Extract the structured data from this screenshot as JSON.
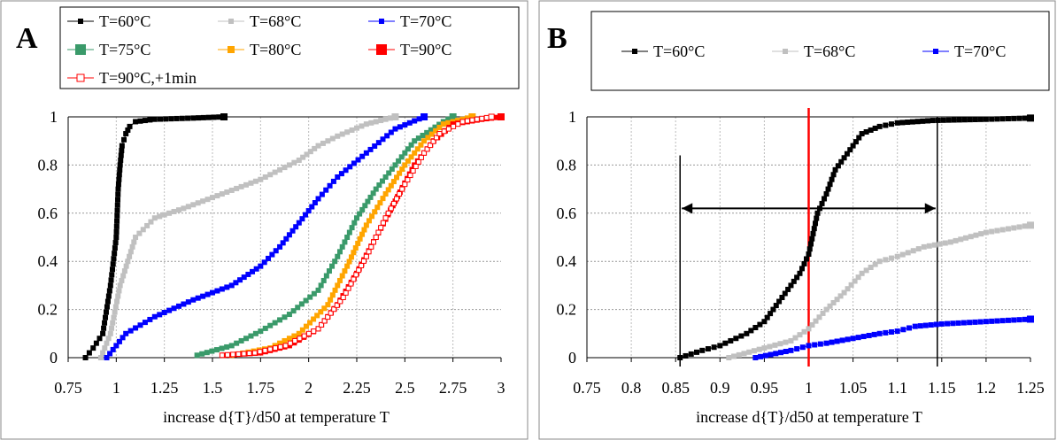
{
  "chart_data": [
    {
      "panel_label": "A",
      "type": "line",
      "xlabel": "increase d{T}/d50 at temperature T",
      "ylabel": "",
      "xlim": [
        0.75,
        3
      ],
      "ylim": [
        0,
        1
      ],
      "x_ticks": [
        "0.75",
        "1",
        "1.25",
        "1.5",
        "1.75",
        "2",
        "2.25",
        "2.5",
        "2.75",
        "3"
      ],
      "y_ticks": [
        "0",
        "0.2",
        "0.4",
        "0.6",
        "0.8",
        "1"
      ],
      "grid": true,
      "legend_position": "top",
      "series": [
        {
          "name": "T=60°C",
          "color": "#000000",
          "marker": "filled-square",
          "x": [
            0.84,
            0.88,
            0.93,
            0.97,
            1.0,
            1.01,
            1.02,
            1.03,
            1.05,
            1.07,
            1.1,
            1.2,
            1.4,
            1.56
          ],
          "y": [
            0.0,
            0.04,
            0.1,
            0.3,
            0.5,
            0.7,
            0.8,
            0.88,
            0.93,
            0.96,
            0.98,
            0.99,
            0.995,
            1.0
          ]
        },
        {
          "name": "T=68°C",
          "color": "#c0c0c0",
          "marker": "filled-square",
          "x": [
            0.92,
            0.97,
            1.02,
            1.1,
            1.2,
            1.35,
            1.55,
            1.75,
            1.95,
            2.05,
            2.15,
            2.3,
            2.45
          ],
          "y": [
            0.0,
            0.1,
            0.3,
            0.5,
            0.58,
            0.62,
            0.68,
            0.74,
            0.82,
            0.88,
            0.92,
            0.97,
            1.0
          ]
        },
        {
          "name": "T=70°C",
          "color": "#0000ff",
          "marker": "filled-square",
          "x": [
            0.95,
            1.05,
            1.2,
            1.4,
            1.6,
            1.75,
            1.85,
            1.95,
            2.05,
            2.15,
            2.3,
            2.45,
            2.6
          ],
          "y": [
            0.0,
            0.1,
            0.17,
            0.24,
            0.3,
            0.38,
            0.46,
            0.56,
            0.66,
            0.75,
            0.85,
            0.95,
            1.0
          ]
        },
        {
          "name": "T=75°C",
          "color": "#3a9a6a",
          "marker": "filled-square",
          "x": [
            1.42,
            1.6,
            1.75,
            1.9,
            2.05,
            2.15,
            2.25,
            2.35,
            2.45,
            2.55,
            2.7,
            2.75
          ],
          "y": [
            0.01,
            0.05,
            0.11,
            0.18,
            0.28,
            0.42,
            0.58,
            0.7,
            0.8,
            0.9,
            0.98,
            1.0
          ]
        },
        {
          "name": "T=80°C",
          "color": "#ffa500",
          "marker": "filled-square",
          "x": [
            1.6,
            1.8,
            1.95,
            2.1,
            2.2,
            2.3,
            2.4,
            2.5,
            2.6,
            2.7,
            2.85
          ],
          "y": [
            0.01,
            0.04,
            0.1,
            0.22,
            0.38,
            0.55,
            0.68,
            0.8,
            0.9,
            0.97,
            1.0
          ]
        },
        {
          "name": "T=90°C",
          "color": "#ff0000",
          "marker": "filled-square",
          "x": [
            1.56,
            1.75,
            1.9,
            2.05,
            2.15,
            2.25,
            2.35,
            2.45,
            2.55,
            2.65,
            2.75,
            2.9,
            3.0
          ],
          "y": [
            0.01,
            0.02,
            0.05,
            0.12,
            0.22,
            0.35,
            0.5,
            0.65,
            0.8,
            0.9,
            0.97,
            0.99,
            1.0
          ]
        },
        {
          "name": "T=90°C,+1min",
          "color": "#ff0000",
          "marker": "open-square",
          "x": [
            1.55,
            1.72,
            1.88,
            2.05,
            2.18,
            2.3,
            2.4,
            2.5,
            2.6,
            2.68,
            2.8,
            2.95
          ],
          "y": [
            0.01,
            0.02,
            0.05,
            0.12,
            0.25,
            0.42,
            0.58,
            0.72,
            0.85,
            0.93,
            0.98,
            1.0
          ]
        }
      ]
    },
    {
      "panel_label": "B",
      "type": "line",
      "xlabel": "increase d{T}/d50 at temperature T",
      "ylabel": "",
      "xlim": [
        0.75,
        1.25
      ],
      "ylim": [
        0,
        1
      ],
      "x_ticks": [
        "0.75",
        "0.8",
        "0.85",
        "0.9",
        "0.95",
        "1",
        "1.05",
        "1.1",
        "1.15",
        "1.2",
        "1.25"
      ],
      "y_ticks": [
        "0",
        "0.2",
        "0.4",
        "0.6",
        "0.8",
        "1"
      ],
      "grid": true,
      "legend_position": "top",
      "annotations": {
        "red_vertical_line_x": 1.0,
        "range_arrow": {
          "x_from": 0.855,
          "x_to": 1.145,
          "y": 0.62
        },
        "bracket_lines_x": [
          0.855,
          1.145
        ]
      },
      "series": [
        {
          "name": "T=60°C",
          "color": "#000000",
          "marker": "filled-square",
          "x": [
            0.855,
            0.88,
            0.9,
            0.93,
            0.95,
            0.97,
            0.99,
            1.0,
            1.01,
            1.02,
            1.03,
            1.05,
            1.06,
            1.08,
            1.1,
            1.14,
            1.2,
            1.25
          ],
          "y": [
            0.0,
            0.03,
            0.05,
            0.1,
            0.15,
            0.25,
            0.35,
            0.43,
            0.6,
            0.68,
            0.78,
            0.88,
            0.93,
            0.96,
            0.975,
            0.985,
            0.99,
            0.995
          ]
        },
        {
          "name": "T=68°C",
          "color": "#c0c0c0",
          "marker": "filled-square",
          "x": [
            0.91,
            0.95,
            0.98,
            1.0,
            1.02,
            1.04,
            1.06,
            1.08,
            1.1,
            1.13,
            1.16,
            1.2,
            1.25
          ],
          "y": [
            0.0,
            0.04,
            0.07,
            0.12,
            0.2,
            0.27,
            0.35,
            0.4,
            0.42,
            0.46,
            0.48,
            0.52,
            0.55
          ]
        },
        {
          "name": "T=70°C",
          "color": "#0000ff",
          "marker": "filled-square",
          "x": [
            0.94,
            0.98,
            1.0,
            1.02,
            1.05,
            1.08,
            1.1,
            1.12,
            1.15,
            1.2,
            1.25
          ],
          "y": [
            0.0,
            0.03,
            0.05,
            0.06,
            0.08,
            0.1,
            0.11,
            0.13,
            0.14,
            0.15,
            0.16
          ]
        }
      ]
    }
  ]
}
